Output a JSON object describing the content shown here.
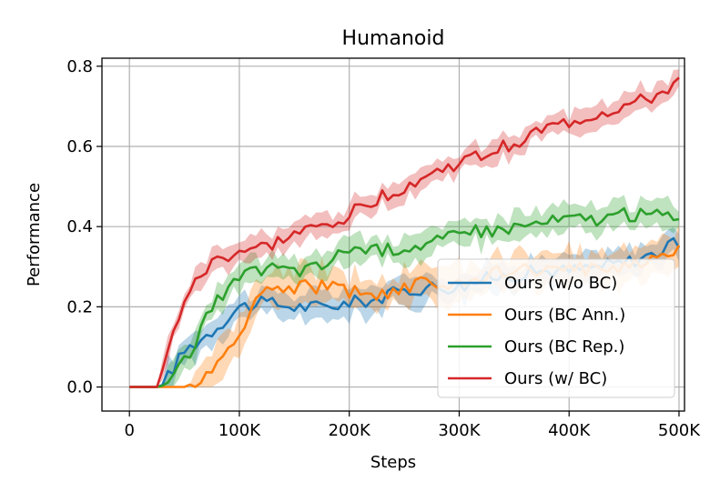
{
  "chart_data": {
    "type": "line",
    "title": "Humanoid",
    "xlabel": "Steps",
    "ylabel": "Performance",
    "xlim": [
      -25000,
      505000
    ],
    "ylim": [
      -0.06,
      0.82
    ],
    "grid": true,
    "legend_position": "lower-right",
    "x_ticks": [
      {
        "value": 0,
        "label": "0"
      },
      {
        "value": 100000,
        "label": "100K"
      },
      {
        "value": 200000,
        "label": "200K"
      },
      {
        "value": 300000,
        "label": "300K"
      },
      {
        "value": 400000,
        "label": "400K"
      },
      {
        "value": 500000,
        "label": "500K"
      }
    ],
    "y_ticks": [
      {
        "value": 0.0,
        "label": "0.0"
      },
      {
        "value": 0.2,
        "label": "0.2"
      },
      {
        "value": 0.4,
        "label": "0.4"
      },
      {
        "value": 0.6,
        "label": "0.6"
      },
      {
        "value": 0.8,
        "label": "0.8"
      }
    ],
    "x": [
      0,
      25000,
      30000,
      50000,
      75000,
      100000,
      125000,
      150000,
      175000,
      200000,
      225000,
      250000,
      275000,
      300000,
      325000,
      350000,
      375000,
      400000,
      425000,
      450000,
      475000,
      500000
    ],
    "series": [
      {
        "name": "Ours (w/o BC)",
        "color": "#1f77b4",
        "values": [
          0,
          0,
          0.005,
          0.09,
          0.14,
          0.2,
          0.21,
          0.2,
          0.2,
          0.21,
          0.22,
          0.24,
          0.25,
          0.25,
          0.27,
          0.28,
          0.29,
          0.29,
          0.3,
          0.31,
          0.33,
          0.36
        ],
        "band": 0.03
      },
      {
        "name": "Ours (BC Ann.)",
        "color": "#ff7f0e",
        "values": [
          0,
          0,
          0,
          0,
          0.03,
          0.14,
          0.25,
          0.25,
          0.25,
          0.24,
          0.23,
          0.25,
          0.26,
          0.26,
          0.28,
          0.29,
          0.29,
          0.29,
          0.3,
          0.3,
          0.32,
          0.35
        ],
        "band": 0.04
      },
      {
        "name": "Ours (BC Rep.)",
        "color": "#2ca02c",
        "values": [
          0,
          0,
          0.003,
          0.06,
          0.2,
          0.27,
          0.3,
          0.29,
          0.3,
          0.35,
          0.34,
          0.35,
          0.36,
          0.38,
          0.39,
          0.4,
          0.41,
          0.42,
          0.42,
          0.43,
          0.43,
          0.43
        ],
        "band": 0.03
      },
      {
        "name": "Ours (w/ BC)",
        "color": "#d62728",
        "values": [
          0,
          0,
          0.04,
          0.22,
          0.31,
          0.34,
          0.35,
          0.38,
          0.4,
          0.43,
          0.47,
          0.5,
          0.53,
          0.56,
          0.58,
          0.61,
          0.64,
          0.66,
          0.68,
          0.7,
          0.72,
          0.76
        ],
        "band": 0.025
      }
    ]
  }
}
